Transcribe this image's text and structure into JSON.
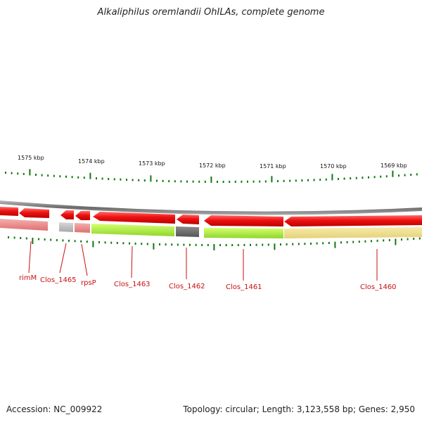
{
  "title": "Alkaliphilus oremlandii OhILAs, complete genome",
  "footer": {
    "accession": "Accession: NC_009922",
    "summary": "Topology: circular; Length: 3,123,558 bp; Genes: 2,950"
  },
  "colors": {
    "forward_cds": "#ee1111",
    "tick": "#117711",
    "backbone": "#777777",
    "label": "#c81010"
  },
  "kbp_labels": [
    "1575 kbp",
    "1574 kbp",
    "1573 kbp",
    "1572 kbp",
    "1571 kbp",
    "1570 kbp",
    "1569 kbp"
  ],
  "genes": [
    {
      "name": "rimM"
    },
    {
      "name": "Clos_1465"
    },
    {
      "name": "rpsP"
    },
    {
      "name": "Clos_1463"
    },
    {
      "name": "Clos_1462"
    },
    {
      "name": "Clos_1461"
    },
    {
      "name": "Clos_1460"
    }
  ]
}
